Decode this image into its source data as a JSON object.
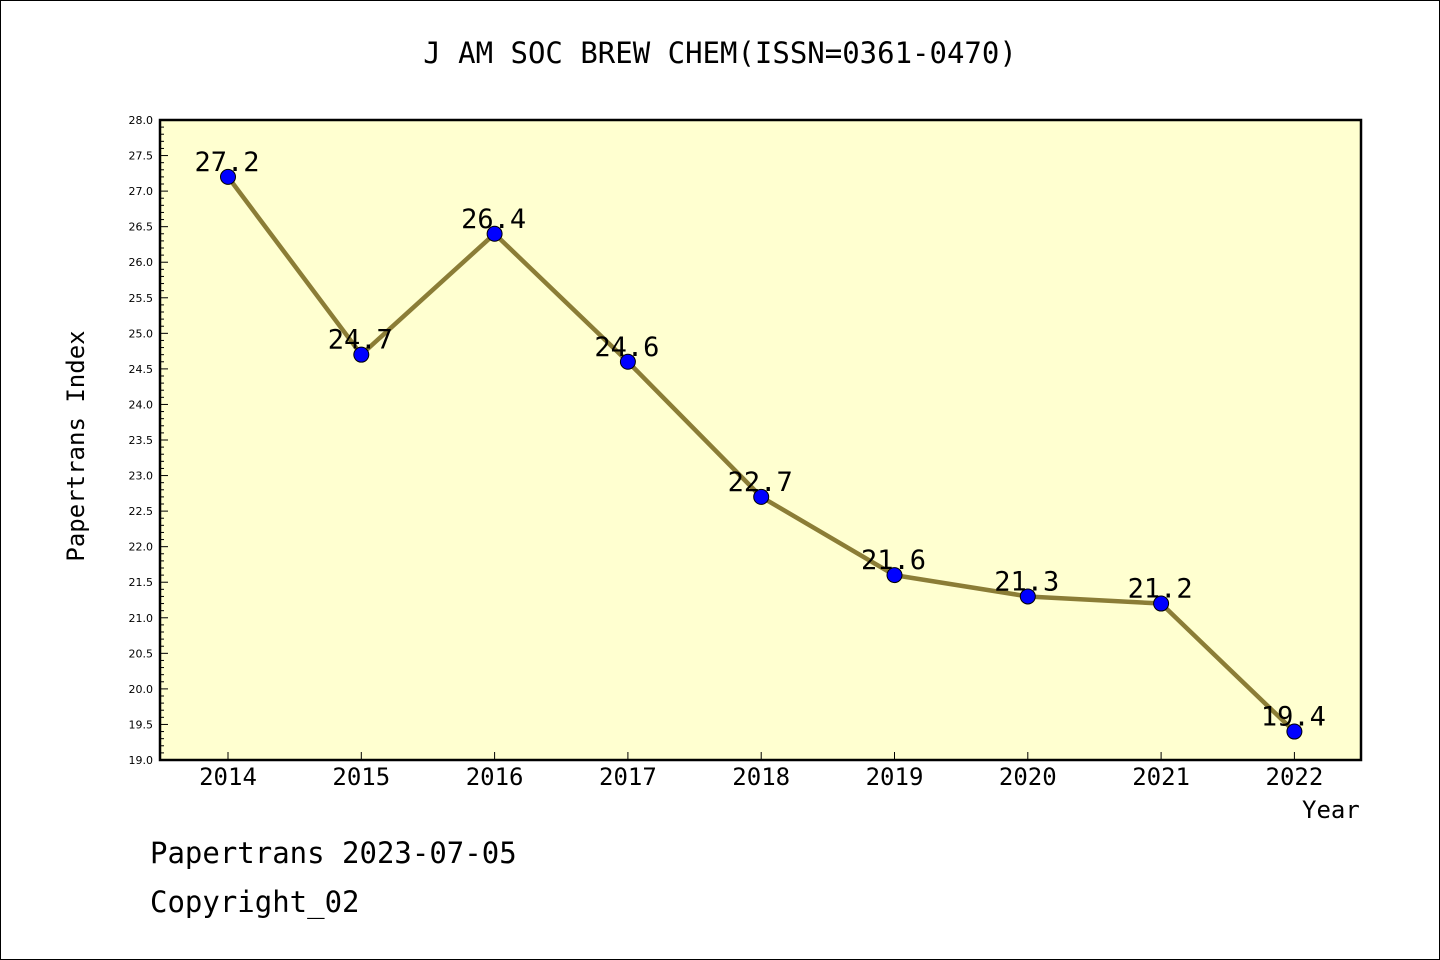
{
  "chart_data": {
    "type": "line",
    "title": "J AM SOC BREW CHEM(ISSN=0361-0470)",
    "xlabel": "Year",
    "ylabel": "Papertrans Index",
    "categories": [
      "2014",
      "2015",
      "2016",
      "2017",
      "2018",
      "2019",
      "2020",
      "2021",
      "2022"
    ],
    "series": [
      {
        "values": [
          27.2,
          24.7,
          26.4,
          24.6,
          22.7,
          21.6,
          21.3,
          21.2,
          19.4
        ]
      }
    ],
    "data_labels": [
      "27.2",
      "24.7",
      "26.4",
      "24.6",
      "22.7",
      "21.6",
      "21.3",
      "21.2",
      "19.4"
    ],
    "ylim": [
      19.0,
      28.0
    ],
    "y_ticks": [
      "19.0",
      "19.5",
      "20.0",
      "20.5",
      "21.0",
      "21.5",
      "22.0",
      "22.5",
      "23.0",
      "23.5",
      "24.0",
      "24.5",
      "25.0",
      "25.5",
      "26.0",
      "26.5",
      "27.0",
      "27.5",
      "28.0"
    ],
    "grid": false,
    "colors": {
      "plot_bg": "#ffffd0",
      "line": "#8b7d36",
      "marker": "#0000ff"
    }
  },
  "footer": {
    "line1": "Papertrans 2023-07-05",
    "line2": "Copyright_02"
  }
}
